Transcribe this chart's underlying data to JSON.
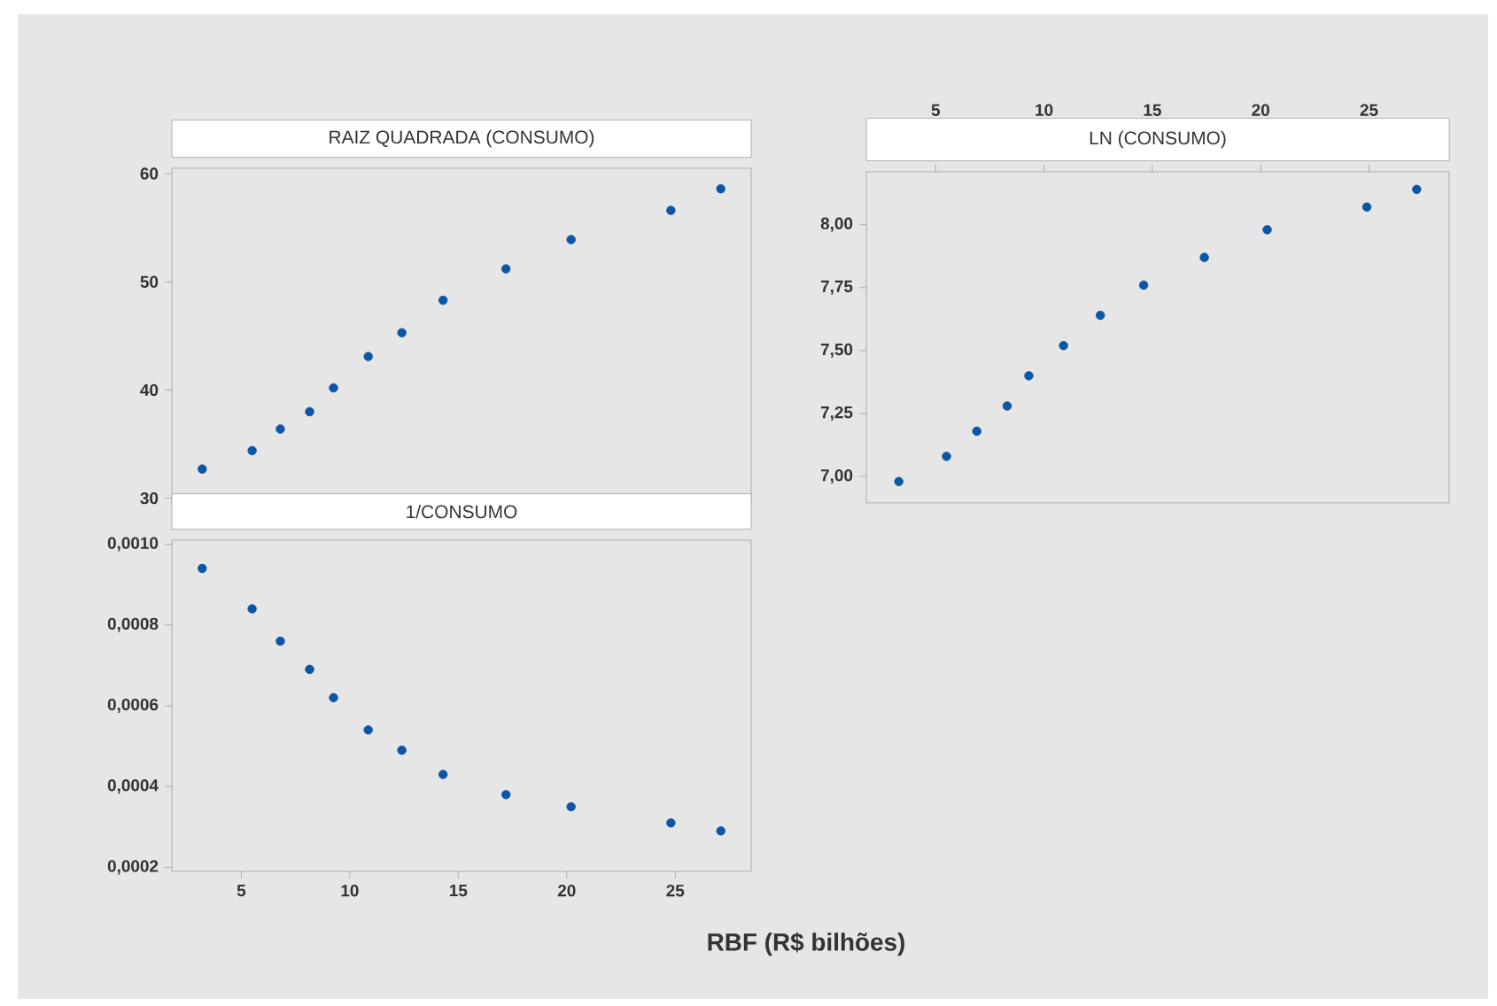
{
  "chart_data": [
    {
      "type": "scatter",
      "title": "RAIZ QUADRADA (CONSUMO)",
      "marker": "circle",
      "color": "#0b56a6",
      "x": [
        3.2,
        5.5,
        6.8,
        8.15,
        9.25,
        10.85,
        12.4,
        14.3,
        17.2,
        20.2,
        24.8,
        27.1
      ],
      "values": [
        32.7,
        34.4,
        36.4,
        38.0,
        40.2,
        43.1,
        45.3,
        48.3,
        51.2,
        53.9,
        56.6,
        58.6
      ],
      "xlim": [
        1.8,
        28.5
      ],
      "ylim": [
        29.4,
        60.5
      ],
      "yticks": [
        30,
        40,
        50,
        60
      ],
      "tick_labels": "y"
    },
    {
      "type": "scatter",
      "title": "1/CONSUMO",
      "xlabel": "RBF (R$ bilhões)",
      "marker": "circle",
      "color": "#0b56a6",
      "x": [
        3.2,
        5.5,
        6.8,
        8.15,
        9.25,
        10.85,
        12.4,
        14.3,
        17.2,
        20.2,
        24.8,
        27.1
      ],
      "values": [
        0.00094,
        0.00084,
        0.00076,
        0.00069,
        0.00062,
        0.00054,
        0.00049,
        0.00043,
        0.00038,
        0.00035,
        0.00031,
        0.00029
      ],
      "xlim": [
        1.8,
        28.5
      ],
      "xticks": [
        5,
        10,
        15,
        20,
        25
      ],
      "ylim": [
        0.00019,
        0.00101
      ],
      "yticks": [
        {
          "value": 0.0002,
          "label": "0,0002"
        },
        {
          "value": 0.0004,
          "label": "0,0004"
        },
        {
          "value": 0.0006,
          "label": "0,0006"
        },
        {
          "value": 0.0008,
          "label": "0,0008"
        },
        {
          "value": 0.001,
          "label": "0,0010"
        }
      ]
    },
    {
      "type": "scatter",
      "title": "LN (CONSUMO)",
      "marker": "circle",
      "color": "#0b56a6",
      "x": [
        3.3,
        5.5,
        6.9,
        8.3,
        9.3,
        10.9,
        12.6,
        14.6,
        17.4,
        20.3,
        24.9,
        27.2
      ],
      "values": [
        6.98,
        7.08,
        7.18,
        7.28,
        7.4,
        7.52,
        7.64,
        7.76,
        7.87,
        7.98,
        8.07,
        8.14
      ],
      "xlim": [
        1.8,
        28.7
      ],
      "xticks": [
        5,
        10,
        15,
        20,
        25
      ],
      "ylim": [
        6.895,
        8.21
      ],
      "yticks": [
        {
          "value": 7.0,
          "label": "7,00"
        },
        {
          "value": 7.25,
          "label": "7,25"
        },
        {
          "value": 7.5,
          "label": "7,50"
        },
        {
          "value": 7.75,
          "label": "7,75"
        },
        {
          "value": 8.0,
          "label": "8,00"
        }
      ]
    }
  ]
}
